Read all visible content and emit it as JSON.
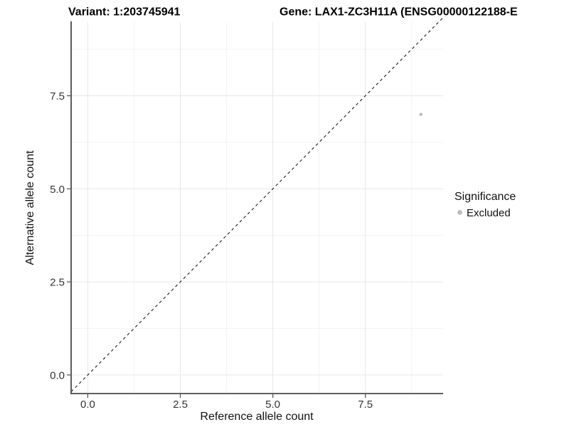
{
  "titles": {
    "variant": "Variant: 1:203745941",
    "gene": "Gene: LAX1-ZC3H11A (ENSG00000122188-E"
  },
  "chart_data": {
    "type": "scatter",
    "titles": {
      "variant": "Variant: 1:203745941",
      "gene": "Gene: LAX1-ZC3H11A (ENSG00000122188-E"
    },
    "xlabel": "Reference allele count",
    "ylabel": "Alternative allele count",
    "x_ticks": {
      "values": [
        0,
        2.5,
        5,
        7.5
      ],
      "labels": [
        "0.0",
        "2.5",
        "5.0",
        "7.5"
      ]
    },
    "y_ticks": {
      "values": [
        0,
        2.5,
        5,
        7.5
      ],
      "labels": [
        "0.0",
        "2.5",
        "5.0",
        "7.5"
      ]
    },
    "minor_tick_interval": 1.25,
    "xlim": [
      -0.45,
      9.6
    ],
    "ylim": [
      -0.5,
      9.48
    ],
    "grid": true,
    "legend_position": "right",
    "legend": {
      "title": "Significance",
      "items": [
        {
          "label": "Excluded",
          "color": "#bdbdbd",
          "shape": "circle"
        }
      ]
    },
    "series": [
      {
        "name": "Excluded",
        "color": "#bdbdbd",
        "points": [
          {
            "x": 9,
            "y": 7
          }
        ]
      }
    ],
    "reference_line": {
      "equation": "y = x",
      "style": "dashed",
      "color": "#1a1a1a"
    }
  },
  "colors": {
    "point": "#bdbdbd",
    "grid_major": "#e7e7e7",
    "grid_minor": "#f3f3f3",
    "axis_line": "#4a4a4a",
    "dashed_line": "#1a1a1a"
  }
}
